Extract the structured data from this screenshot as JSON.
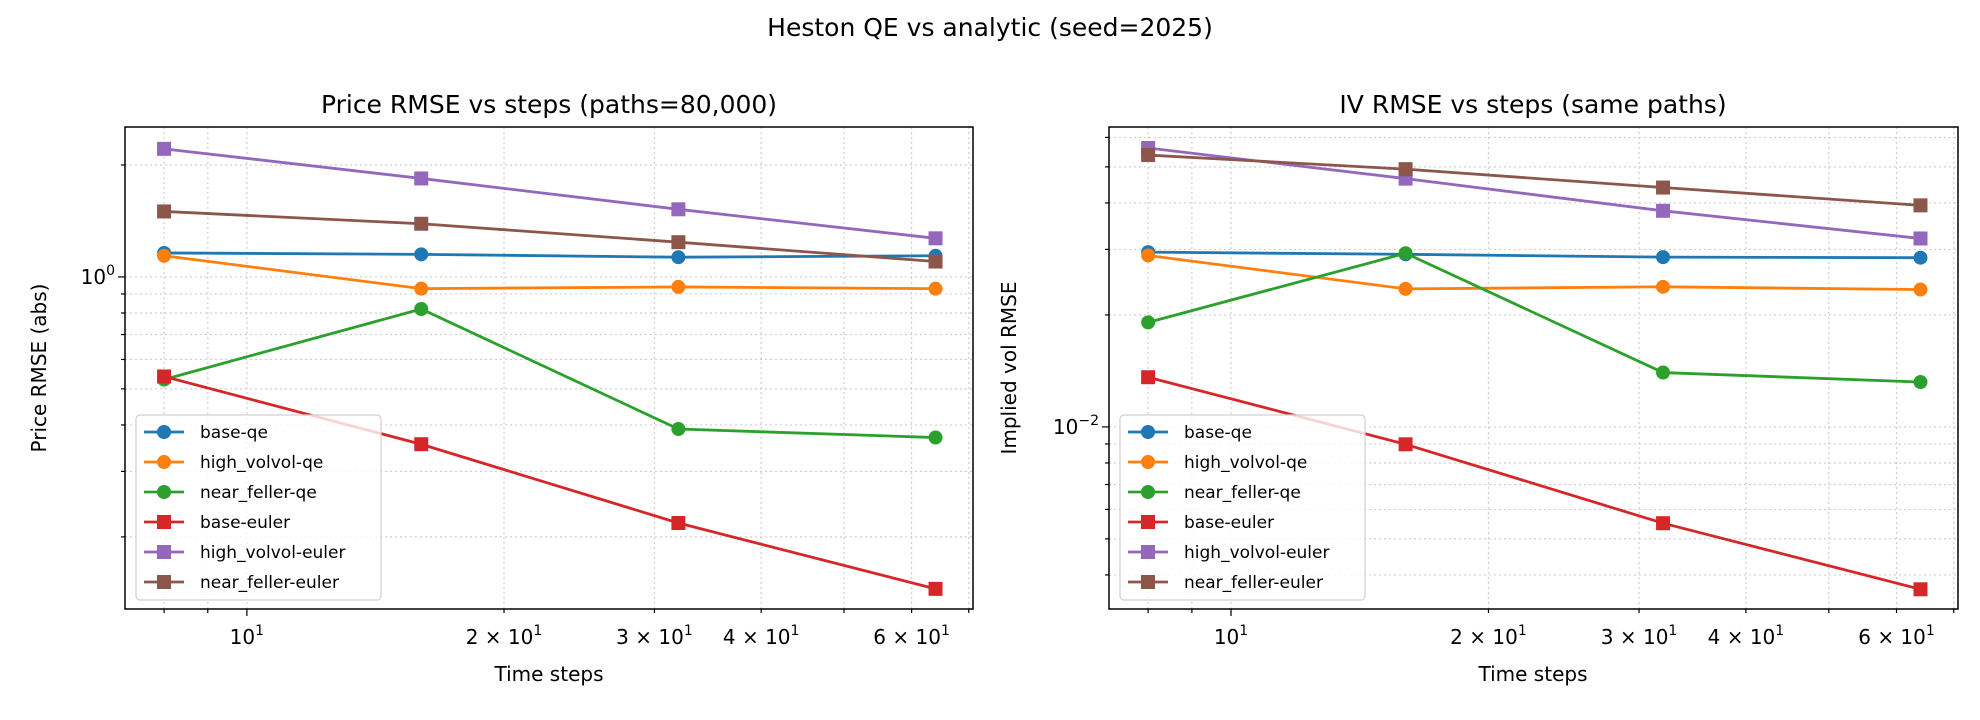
{
  "suptitle": "Heston QE vs analytic (seed=2025)",
  "chart_data": [
    {
      "type": "line",
      "title": "Price RMSE vs steps (paths=80,000)",
      "xlabel": "Time steps",
      "ylabel": "Price RMSE (abs)",
      "xscale": "log",
      "yscale": "log",
      "xlim": [
        7.2,
        70.8
      ],
      "ylim": [
        0.128,
        2.53
      ],
      "grid": true,
      "legend": "lower-left",
      "x": [
        8,
        16,
        32,
        64
      ],
      "x_tick_labels": [
        {
          "value": 10,
          "base": "10",
          "sup": "1"
        },
        {
          "value": 20,
          "base": "2 × 10",
          "sup": "1"
        },
        {
          "value": 30,
          "base": "3 × 10",
          "sup": "1"
        },
        {
          "value": 40,
          "base": "4 × 10",
          "sup": "1"
        },
        {
          "value": 60,
          "base": "6 × 10",
          "sup": "1"
        }
      ],
      "y_tick_labels": [
        {
          "value": 1,
          "base": "10",
          "sup": "0"
        }
      ],
      "series": [
        {
          "name": "base-qe",
          "color": "#1f77b4",
          "marker": "circle",
          "values": [
            1.16,
            1.15,
            1.13,
            1.14
          ]
        },
        {
          "name": "high_volvol-qe",
          "color": "#ff7f0e",
          "marker": "circle",
          "values": [
            1.14,
            0.93,
            0.94,
            0.93
          ]
        },
        {
          "name": "near_feller-qe",
          "color": "#2ca02c",
          "marker": "circle",
          "values": [
            0.53,
            0.82,
            0.39,
            0.37
          ]
        },
        {
          "name": "base-euler",
          "color": "#d62728",
          "marker": "square",
          "values": [
            0.54,
            0.355,
            0.218,
            0.145
          ]
        },
        {
          "name": "high_volvol-euler",
          "color": "#9467bd",
          "marker": "square",
          "values": [
            2.21,
            1.84,
            1.52,
            1.27
          ]
        },
        {
          "name": "near_feller-euler",
          "color": "#8c564b",
          "marker": "square",
          "values": [
            1.5,
            1.39,
            1.24,
            1.1
          ]
        }
      ]
    },
    {
      "type": "line",
      "title": "IV RMSE vs steps (same paths)",
      "xlabel": "Time steps",
      "ylabel": "Implied vol RMSE",
      "xscale": "log",
      "yscale": "log",
      "xlim": [
        7.2,
        70.8
      ],
      "ylim": [
        0.00324,
        0.064
      ],
      "grid": true,
      "legend": "lower-left",
      "x": [
        8,
        16,
        32,
        64
      ],
      "x_tick_labels": [
        {
          "value": 10,
          "base": "10",
          "sup": "1"
        },
        {
          "value": 20,
          "base": "2 × 10",
          "sup": "1"
        },
        {
          "value": 30,
          "base": "3 × 10",
          "sup": "1"
        },
        {
          "value": 40,
          "base": "4 × 10",
          "sup": "1"
        },
        {
          "value": 60,
          "base": "6 × 10",
          "sup": "1"
        }
      ],
      "y_tick_labels": [
        {
          "value": 0.01,
          "base": "10",
          "sup": "−2"
        }
      ],
      "series": [
        {
          "name": "base-qe",
          "color": "#1f77b4",
          "marker": "circle",
          "values": [
            0.0295,
            0.0291,
            0.0286,
            0.0285
          ]
        },
        {
          "name": "high_volvol-qe",
          "color": "#ff7f0e",
          "marker": "circle",
          "values": [
            0.0289,
            0.0235,
            0.0238,
            0.0234
          ]
        },
        {
          "name": "near_feller-qe",
          "color": "#2ca02c",
          "marker": "circle",
          "values": [
            0.0191,
            0.0293,
            0.014,
            0.0132
          ]
        },
        {
          "name": "base-euler",
          "color": "#d62728",
          "marker": "square",
          "values": [
            0.0136,
            0.00898,
            0.00551,
            0.00366
          ]
        },
        {
          "name": "high_volvol-euler",
          "color": "#9467bd",
          "marker": "square",
          "values": [
            0.0562,
            0.0465,
            0.0381,
            0.0321
          ]
        },
        {
          "name": "near_feller-euler",
          "color": "#8c564b",
          "marker": "square",
          "values": [
            0.0538,
            0.0493,
            0.044,
            0.0394
          ]
        }
      ]
    }
  ]
}
